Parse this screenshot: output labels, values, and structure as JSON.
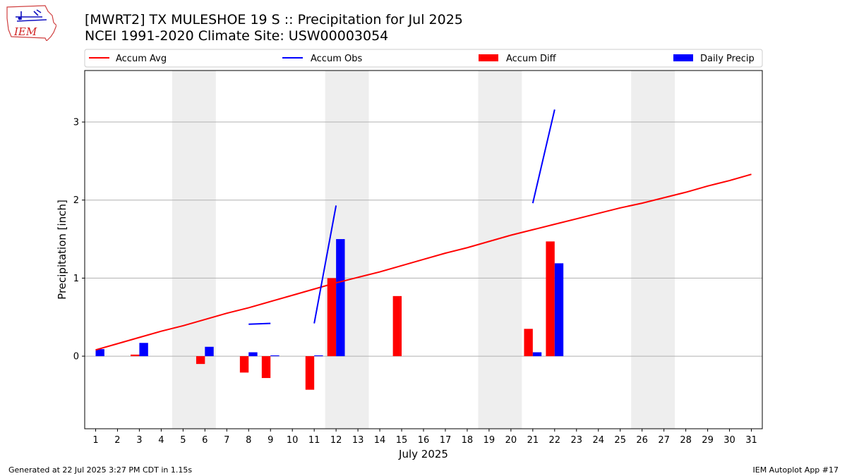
{
  "header": {
    "title_line1": "[MWRT2] TX MULESHOE 19 S :: Precipitation for Jul 2025",
    "title_line2": "NCEI 1991-2020 Climate Site: USW00003054"
  },
  "logo": {
    "text": "IEM"
  },
  "footer": {
    "generated": "Generated at 22 Jul 2025 3:27 PM CDT in 1.15s",
    "app": "IEM Autoplot App #17"
  },
  "colors": {
    "accum_avg": "#ff0000",
    "accum_obs": "#0000ff",
    "accum_diff": "#ff0000",
    "daily_precip": "#0000ff",
    "weekend_shade": "#eeeeee",
    "grid": "#b0b0b0"
  },
  "chart_data": {
    "type": "bar",
    "xlabel": "July 2025",
    "ylabel": "Precipitation [inch]",
    "xlim": [
      0.5,
      31.5
    ],
    "ylim": [
      -0.93,
      3.66
    ],
    "yticks": [
      0,
      1,
      2,
      3
    ],
    "grid": "y",
    "legend_position": "top",
    "legend": [
      "Accum Avg",
      "Accum Obs",
      "Accum Diff",
      "Daily Precip"
    ],
    "x": [
      1,
      2,
      3,
      4,
      5,
      6,
      7,
      8,
      9,
      10,
      11,
      12,
      13,
      14,
      15,
      16,
      17,
      18,
      19,
      20,
      21,
      22,
      23,
      24,
      25,
      26,
      27,
      28,
      29,
      30,
      31
    ],
    "weekend_shading": [
      [
        4.5,
        6.5
      ],
      [
        11.5,
        13.5
      ],
      [
        18.5,
        20.5
      ],
      [
        25.5,
        27.5
      ]
    ],
    "series": [
      {
        "name": "Accum Avg",
        "kind": "line",
        "values": [
          0.08,
          0.16,
          0.24,
          0.32,
          0.39,
          0.47,
          0.55,
          0.62,
          0.7,
          0.78,
          0.86,
          0.94,
          1.01,
          1.08,
          1.16,
          1.24,
          1.32,
          1.39,
          1.47,
          1.55,
          1.62,
          1.69,
          1.76,
          1.83,
          1.9,
          1.96,
          2.03,
          2.1,
          2.18,
          2.25,
          2.33
        ]
      },
      {
        "name": "Accum Obs",
        "kind": "line",
        "values": [
          null,
          null,
          null,
          null,
          null,
          null,
          null,
          0.41,
          0.42,
          null,
          0.42,
          1.93,
          null,
          null,
          null,
          null,
          null,
          null,
          null,
          null,
          1.96,
          3.16,
          null,
          null,
          null,
          null,
          null,
          null,
          null,
          null,
          null
        ]
      },
      {
        "name": "Accum Diff",
        "kind": "bar",
        "offset": -0.2,
        "values": [
          0.0,
          0.0,
          0.02,
          0.0,
          0.0,
          -0.1,
          0.0,
          -0.21,
          -0.28,
          0.0,
          -0.43,
          1.0,
          0.0,
          0.0,
          0.77,
          0.0,
          0.0,
          0.0,
          0.0,
          0.0,
          0.35,
          1.47,
          0.0,
          0.0,
          0.0,
          0.0,
          0.0,
          0.0,
          0.0,
          0.0,
          0.0
        ]
      },
      {
        "name": "Daily Precip",
        "kind": "bar",
        "offset": 0.2,
        "values": [
          0.09,
          0.0,
          0.17,
          0.0,
          0.0,
          0.12,
          0.0,
          0.05,
          0.01,
          0.0,
          0.01,
          1.5,
          0.0,
          0.0,
          0.0,
          0.0,
          0.0,
          0.0,
          0.0,
          0.0,
          0.05,
          1.19,
          0.0,
          0.0,
          0.0,
          0.0,
          0.0,
          0.0,
          0.0,
          0.0,
          0.0
        ]
      }
    ]
  }
}
